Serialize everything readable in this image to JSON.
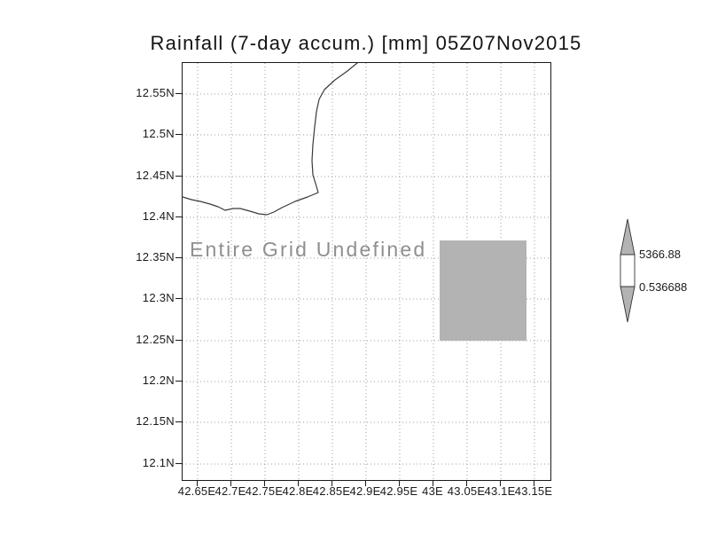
{
  "title": "Rainfall (7-day accum.) [mm] 05Z07Nov2015",
  "overlay_text": "Entire Grid Undefined",
  "axes": {
    "lat_labels": [
      "12.55N",
      "12.5N",
      "12.45N",
      "12.4N",
      "12.35N",
      "12.3N",
      "12.25N",
      "12.2N",
      "12.15N",
      "12.1N"
    ],
    "lon_labels": [
      "42.65E",
      "42.7E",
      "42.75E",
      "42.8E",
      "42.85E",
      "42.9E",
      "42.95E",
      "43E",
      "43.05E",
      "43.1E",
      "43.15E"
    ]
  },
  "colorbar": {
    "max_label": "5366.88",
    "min_label": "0.536688"
  },
  "colors": {
    "grid": "#9c9c9c",
    "coastline": "#3a3a3a",
    "undef_fill": "#b3b3b3",
    "colorbar_gray": "#b3b3b3",
    "colorbar_white": "#ffffff",
    "outline": "#333333",
    "overlay_text": "#8f8f8f"
  },
  "chart_data": {
    "type": "heatmap",
    "title": "Rainfall (7-day accum.) [mm] 05Z07Nov2015",
    "x_tick_labels": [
      "42.65E",
      "42.7E",
      "42.75E",
      "42.8E",
      "42.85E",
      "42.9E",
      "42.95E",
      "43E",
      "43.05E",
      "43.1E",
      "43.15E"
    ],
    "y_tick_labels": [
      "12.55N",
      "12.5N",
      "12.45N",
      "12.4N",
      "12.35N",
      "12.3N",
      "12.25N",
      "12.2N",
      "12.15N",
      "12.1N"
    ],
    "values": "all undefined",
    "annotation": "Entire Grid Undefined",
    "grid": true,
    "colorbar": {
      "position": "right",
      "labels": [
        "5366.88",
        "0.536688"
      ],
      "segments": [
        "gray-arrow-up",
        "white-band",
        "gray-arrow-down"
      ]
    },
    "shaded_region": {
      "approx_lon_extent": [
        "43E",
        "43.13E"
      ],
      "approx_lat_extent": [
        "12.25N",
        "12.37N"
      ],
      "fill": "#b3b3b3"
    },
    "map_overlay": "coastline (Gulf of Tadjoura / Djibouti area)"
  }
}
